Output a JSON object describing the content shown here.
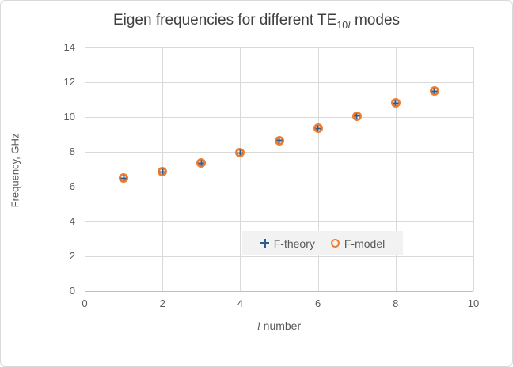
{
  "chart": {
    "title": {
      "prefix": "Eigen frequencies for different TE",
      "subscript_num": "10",
      "subscript_l": "l",
      "suffix": " modes"
    },
    "y_axis": {
      "label": "Frequency, GHz"
    },
    "x_axis": {
      "label_italic": "l",
      "label_rest": " number"
    },
    "legend": [
      {
        "label": "F-theory",
        "marker": "plus-icon",
        "color": "#2E5C8F"
      },
      {
        "label": "F-model",
        "marker": "open-circle-icon",
        "color": "#ED7D31"
      }
    ]
  },
  "chart_data": {
    "type": "scatter",
    "title": "Eigen frequencies for different TE10l modes",
    "xlabel": "l number",
    "ylabel": "Frequency, GHz",
    "xlim": [
      0,
      10
    ],
    "ylim": [
      0,
      14
    ],
    "xticks": [
      0,
      2,
      4,
      6,
      8,
      10
    ],
    "yticks": [
      0,
      2,
      4,
      6,
      8,
      10,
      12,
      14
    ],
    "grid": true,
    "legend_position": "inside-bottom-center",
    "x": [
      1,
      2,
      3,
      4,
      5,
      6,
      7,
      8,
      9
    ],
    "series": [
      {
        "name": "F-theory",
        "marker": "plus",
        "color": "#2E5C8F",
        "values": [
          6.5,
          6.85,
          7.35,
          7.95,
          8.65,
          9.35,
          10.05,
          10.8,
          11.5
        ]
      },
      {
        "name": "F-model",
        "marker": "open-circle",
        "color": "#ED7D31",
        "values": [
          6.5,
          6.85,
          7.35,
          7.95,
          8.65,
          9.35,
          10.05,
          10.8,
          11.5
        ]
      }
    ]
  },
  "colors": {
    "accent_blue": "#2E5C8F",
    "accent_orange": "#ED7D31",
    "grid": "#D9D9D9",
    "axis_line": "#BFBFBF",
    "text_muted": "#595959",
    "title_text": "#404040",
    "legend_bg": "#F2F2F2",
    "chart_border": "#D9D9D9",
    "background": "#FFFFFF"
  }
}
